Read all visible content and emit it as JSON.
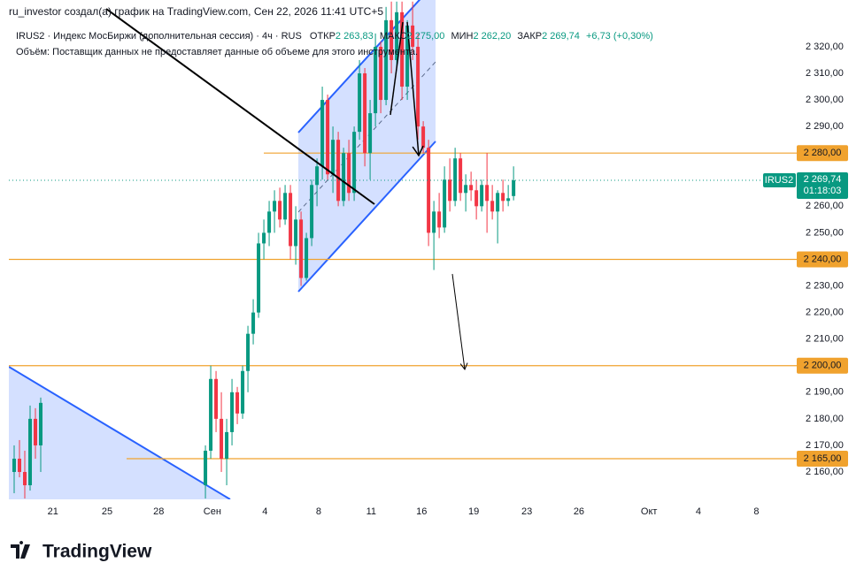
{
  "chart_data": {
    "type": "candlestick",
    "attribution": "ru_investor создал(а) график на TradingView.com, Сен 22, 2026 11:41 UTC+5",
    "legend": {
      "symbol": "IRUS2 · Индекс МосБиржи (дополнительная сессия) · 4ч · RUS",
      "open_label": "ОТКР",
      "open": "2 263,83",
      "high_label": "МАКС",
      "high": "2 275,00",
      "low_label": "МИН",
      "low": "2 262,20",
      "close_label": "ЗАКР",
      "close": "2 269,74",
      "change": "+6,73 (+0,30%)",
      "volume_note": "Объём: Поставщик данных не предоставляет данные об объеме для этого инструмента."
    },
    "up_color": "#089981",
    "down_color": "#f23645",
    "level_color": "#f0a22e",
    "x": [
      1,
      2,
      3,
      4,
      5,
      6,
      37,
      38,
      39,
      40,
      41,
      42,
      43,
      44,
      45,
      46,
      47,
      48,
      49,
      50,
      51,
      52,
      53,
      54,
      55,
      56,
      57,
      58,
      59,
      60,
      61,
      62,
      63,
      64,
      65,
      66,
      67,
      68,
      69,
      70,
      71,
      72,
      73,
      74,
      75,
      76,
      77,
      78,
      79,
      80,
      81,
      82,
      83,
      84,
      85,
      86,
      87,
      88,
      89,
      90,
      91,
      92,
      93,
      94,
      95
    ],
    "open": [
      2160,
      2165,
      2160,
      2155,
      2180,
      2170,
      2155,
      2168,
      2195,
      2180,
      2165,
      2175,
      2190,
      2182,
      2198,
      2212,
      2220,
      2246,
      2250,
      2258,
      2262,
      2255,
      2265,
      2245,
      2255,
      2233,
      2248,
      2268,
      2275,
      2300,
      2272,
      2285,
      2262,
      2280,
      2265,
      2288,
      2310,
      2280,
      2295,
      2320,
      2300,
      2330,
      2315,
      2333,
      2305,
      2328,
      2320,
      2290,
      2282,
      2250,
      2258,
      2252,
      2270,
      2262,
      2278,
      2265,
      2268,
      2266,
      2260,
      2268,
      2262,
      2258,
      2265,
      2262,
      2263.83
    ],
    "high": [
      2170,
      2172,
      2168,
      2185,
      2184,
      2188,
      2170,
      2200,
      2198,
      2190,
      2180,
      2195,
      2192,
      2200,
      2215,
      2225,
      2250,
      2255,
      2262,
      2266,
      2267,
      2268,
      2268,
      2260,
      2258,
      2250,
      2270,
      2278,
      2305,
      2302,
      2290,
      2288,
      2282,
      2285,
      2290,
      2315,
      2312,
      2300,
      2325,
      2322,
      2335,
      2337,
      2337,
      2337,
      2330,
      2337,
      2325,
      2292,
      2285,
      2262,
      2265,
      2275,
      2278,
      2282,
      2280,
      2272,
      2273,
      2270,
      2270,
      2280,
      2268,
      2266,
      2270,
      2268,
      2275
    ],
    "low": [
      2152,
      2158,
      2150,
      2153,
      2165,
      2160,
      2150,
      2165,
      2175,
      2160,
      2155,
      2170,
      2178,
      2180,
      2190,
      2208,
      2218,
      2240,
      2245,
      2250,
      2252,
      2253,
      2240,
      2238,
      2230,
      2232,
      2245,
      2260,
      2270,
      2270,
      2265,
      2260,
      2260,
      2262,
      2262,
      2285,
      2275,
      2270,
      2290,
      2295,
      2298,
      2310,
      2312,
      2300,
      2300,
      2315,
      2285,
      2280,
      2245,
      2236,
      2248,
      2250,
      2258,
      2260,
      2262,
      2258,
      2262,
      2255,
      2258,
      2250,
      2255,
      2246,
      2258,
      2260,
      2262.2
    ],
    "close": [
      2165,
      2160,
      2155,
      2180,
      2170,
      2186,
      2168,
      2195,
      2180,
      2165,
      2175,
      2190,
      2182,
      2198,
      2212,
      2220,
      2246,
      2250,
      2258,
      2262,
      2255,
      2265,
      2245,
      2255,
      2233,
      2248,
      2268,
      2275,
      2300,
      2272,
      2285,
      2262,
      2280,
      2265,
      2288,
      2310,
      2280,
      2295,
      2320,
      2300,
      2330,
      2315,
      2333,
      2305,
      2328,
      2320,
      2290,
      2282,
      2250,
      2258,
      2252,
      2270,
      2262,
      2278,
      2265,
      2268,
      2266,
      2260,
      2268,
      2262,
      2258,
      2265,
      2262,
      2263,
      2269.74
    ],
    "xlim": [
      0,
      148.3
    ],
    "ylim": [
      2149.7,
      2337.6
    ],
    "xticks": [
      {
        "value": 8.3,
        "label": "21"
      },
      {
        "value": 18.5,
        "label": "25"
      },
      {
        "value": 28.2,
        "label": "28"
      },
      {
        "value": 38.3,
        "label": "Сен"
      },
      {
        "value": 48.2,
        "label": "4"
      },
      {
        "value": 58.3,
        "label": "8"
      },
      {
        "value": 68.2,
        "label": "11"
      },
      {
        "value": 77.7,
        "label": "16"
      },
      {
        "value": 87.5,
        "label": "19"
      },
      {
        "value": 97.5,
        "label": "23"
      },
      {
        "value": 107.3,
        "label": "26"
      },
      {
        "value": 120.5,
        "label": "Окт"
      },
      {
        "value": 129.8,
        "label": "4"
      },
      {
        "value": 140.7,
        "label": "8"
      }
    ],
    "yticks": [
      {
        "value": 2320,
        "label": "2 320,00"
      },
      {
        "value": 2310,
        "label": "2 310,00"
      },
      {
        "value": 2300,
        "label": "2 300,00"
      },
      {
        "value": 2290,
        "label": "2 290,00"
      },
      {
        "value": 2260,
        "label": "2 260,00"
      },
      {
        "value": 2250,
        "label": "2 250,00"
      },
      {
        "value": 2230,
        "label": "2 230,00"
      },
      {
        "value": 2220,
        "label": "2 220,00"
      },
      {
        "value": 2210,
        "label": "2 210,00"
      },
      {
        "value": 2190,
        "label": "2 190,00"
      },
      {
        "value": 2180,
        "label": "2 180,00"
      },
      {
        "value": 2170,
        "label": "2 170,00"
      },
      {
        "value": 2160,
        "label": "2 160,00"
      }
    ],
    "levels": [
      {
        "value": 2280,
        "label": "2 280,00"
      },
      {
        "value": 2240,
        "label": "2 240,00"
      },
      {
        "value": 2200,
        "label": "2 200,00"
      },
      {
        "value": 2165,
        "label": "2 165,00"
      }
    ],
    "last": {
      "symbol": "IRUS2",
      "value": 2269.74,
      "label": "2 269,74",
      "countdown": "01:18:03"
    },
    "brand": "TradingView"
  }
}
